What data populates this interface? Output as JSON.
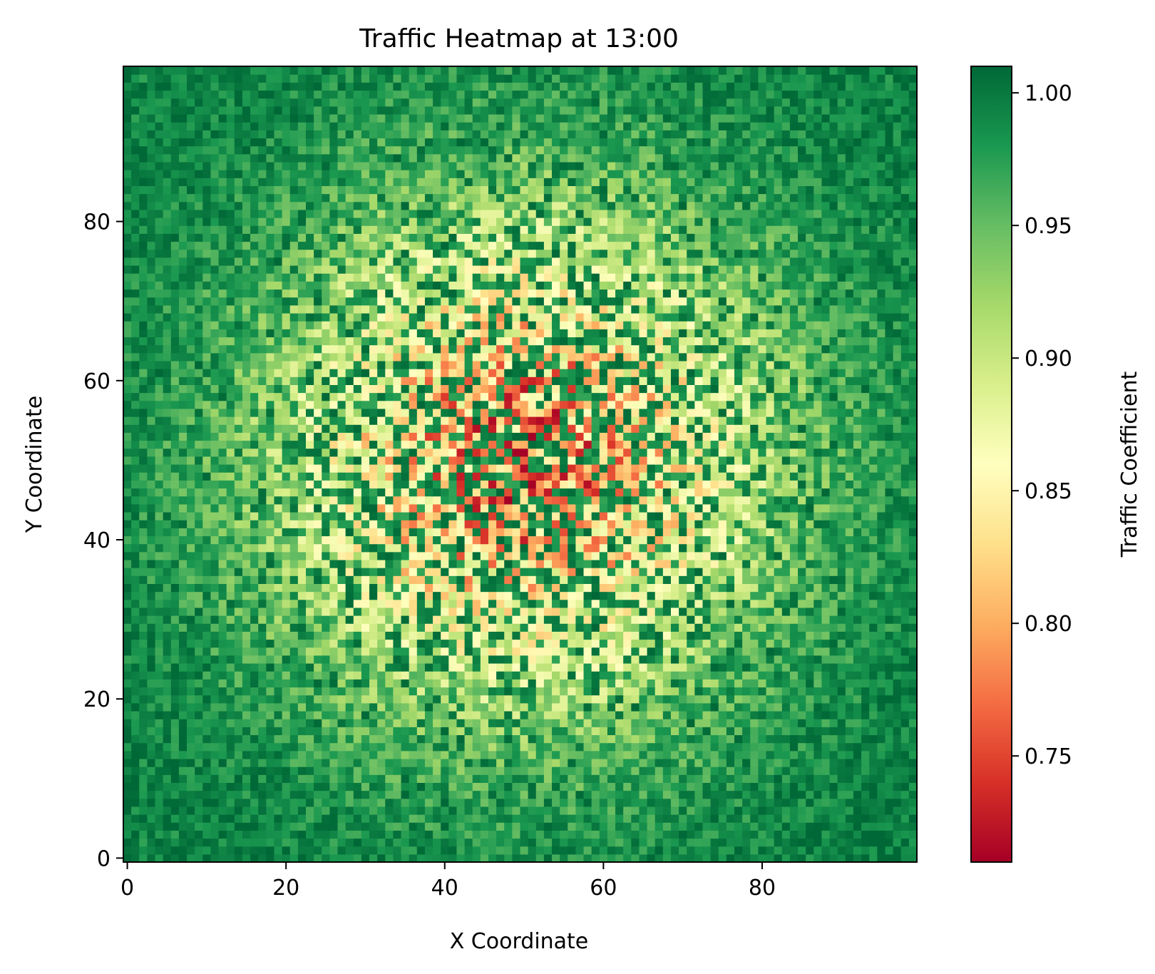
{
  "chart_data": {
    "type": "heatmap",
    "title": "Traffic Heatmap at 13:00",
    "xlabel": "X Coordinate",
    "ylabel": "Y Coordinate",
    "grid_size": [
      100,
      100
    ],
    "xlim": [
      -0.5,
      99.5
    ],
    "ylim": [
      -0.5,
      99.5
    ],
    "x_ticks": [
      0,
      20,
      40,
      60,
      80
    ],
    "y_ticks": [
      0,
      20,
      40,
      60,
      80
    ],
    "grid": false,
    "origin": "lower",
    "colorbar": {
      "label": "Traffic Coefficient",
      "colormap": "RdYlGn",
      "vmin": 0.71,
      "vmax": 1.01,
      "ticks": [
        "0.75",
        "0.80",
        "0.85",
        "0.90",
        "0.95",
        "1.00"
      ]
    },
    "field_model": {
      "kind": "radial_dip_with_noise",
      "center": [
        50,
        50
      ],
      "value_at_center": 0.78,
      "value_at_edge": 1.0,
      "spread": 22,
      "noise": 0.06
    }
  },
  "colors": {
    "ramp": [
      "#a50026",
      "#d73027",
      "#f46d43",
      "#fdae61",
      "#fee08b",
      "#ffffbf",
      "#d9ef8b",
      "#a6d96a",
      "#66bd63",
      "#1a9850",
      "#006837"
    ]
  }
}
